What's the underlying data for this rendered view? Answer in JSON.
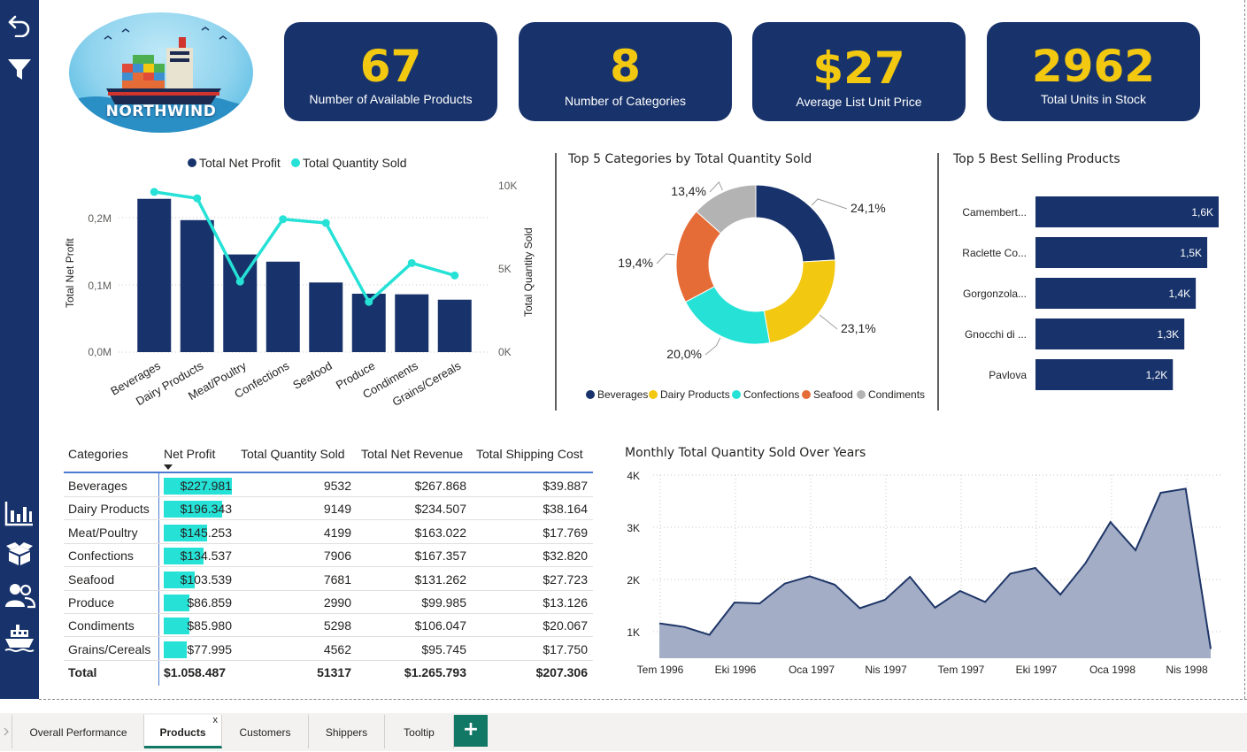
{
  "logo": {
    "text": "NORTHWIND"
  },
  "kpis": [
    {
      "value": "67",
      "label": "Number of Available Products"
    },
    {
      "value": "8",
      "label": "Number of Categories"
    },
    {
      "value": "$27",
      "label": "Average List Unit Price"
    },
    {
      "value": "2962",
      "label": "Total Units in Stock"
    }
  ],
  "combo": {
    "legend": [
      "Total Net Profit",
      "Total Quantity Sold"
    ],
    "ylabel_left": "Total Net Profit",
    "ylabel_right": "Total Quantity Sold",
    "left_ticks": [
      "0,0M",
      "0,1M",
      "0,2M"
    ],
    "right_ticks": [
      "0K",
      "5K",
      "10K"
    ]
  },
  "donut": {
    "title": "Top 5 Categories by Total Quantity Sold",
    "legend": [
      "Beverages",
      "Dairy Products",
      "Confections",
      "Seafood",
      "Condiments"
    ]
  },
  "bars": {
    "title": "Top 5 Best Selling Products"
  },
  "table": {
    "headers": [
      "Categories",
      "Net Profit",
      "Total Quantity Sold",
      "Total Net Revenue",
      "Total Shipping Cost"
    ],
    "rows": [
      [
        "Beverages",
        "$227.981",
        "9532",
        "$267.868",
        "$39.887"
      ],
      [
        "Dairy Products",
        "$196.343",
        "9149",
        "$234.507",
        "$38.164"
      ],
      [
        "Meat/Poultry",
        "$145.253",
        "4199",
        "$163.022",
        "$17.769"
      ],
      [
        "Confections",
        "$134.537",
        "7906",
        "$167.357",
        "$32.820"
      ],
      [
        "Seafood",
        "$103.539",
        "7681",
        "$131.262",
        "$27.723"
      ],
      [
        "Produce",
        "$86.859",
        "2990",
        "$99.985",
        "$13.126"
      ],
      [
        "Condiments",
        "$85.980",
        "5298",
        "$106.047",
        "$20.067"
      ],
      [
        "Grains/Cereals",
        "$77.995",
        "4562",
        "$95.745",
        "$17.750"
      ]
    ],
    "bar_fraction": [
      1.0,
      0.861,
      0.637,
      0.59,
      0.454,
      0.381,
      0.377,
      0.342
    ],
    "total": [
      "Total",
      "$1.058.487",
      "51317",
      "$1.265.793",
      "$207.306"
    ]
  },
  "area": {
    "title": "Monthly Total Quantity Sold Over Years",
    "y_ticks": [
      "1K",
      "2K",
      "3K",
      "4K"
    ],
    "x_ticks": [
      "Tem 1996",
      "Eki 1996",
      "Oca 1997",
      "Nis 1997",
      "Tem 1997",
      "Eki 1997",
      "Oca 1998",
      "Nis 1998"
    ]
  },
  "tabs": [
    "Overall Performance",
    "Products",
    "Customers",
    "Shippers",
    "Tooltip"
  ],
  "tab_close": "x",
  "tab_add": "+",
  "colors": {
    "navy": "#18336b",
    "teal": "#25e1d6",
    "yellow": "#f2c811",
    "orange": "#e66c37",
    "gray": "#b3b3b3",
    "area_fill": "#a3adc6",
    "area_line": "#1f3668",
    "kpi_value": "#f2c811"
  },
  "chart_data": [
    {
      "type": "bar+line",
      "title": "",
      "categories": [
        "Beverages",
        "Dairy Products",
        "Meat/Poultry",
        "Confections",
        "Seafood",
        "Produce",
        "Condiments",
        "Grains/Cereals"
      ],
      "series": [
        {
          "name": "Total Net Profit",
          "type": "bar",
          "axis": "left",
          "values": [
            227981,
            196343,
            145253,
            134537,
            103539,
            86859,
            85980,
            77995
          ]
        },
        {
          "name": "Total Quantity Sold",
          "type": "line",
          "axis": "right",
          "values": [
            9532,
            9149,
            4199,
            7906,
            7681,
            2990,
            5298,
            4562
          ]
        }
      ],
      "ylabel": "Total Net Profit",
      "ylabel_right": "Total Quantity Sold",
      "ylim": [
        0,
        250000
      ],
      "ylim_right": [
        0,
        10000
      ],
      "legend": "top"
    },
    {
      "type": "pie",
      "title": "Top 5 Categories by Total Quantity Sold",
      "categories": [
        "Beverages",
        "Dairy Products",
        "Confections",
        "Seafood",
        "Condiments"
      ],
      "values": [
        24.1,
        23.1,
        20.0,
        19.4,
        13.4
      ],
      "labels": [
        "24,1%",
        "23,1%",
        "20,0%",
        "19,4%",
        "13,4%"
      ],
      "legend": "bottom"
    },
    {
      "type": "bar",
      "orientation": "horizontal",
      "title": "Top 5 Best Selling Products",
      "categories": [
        "Camembert...",
        "Raclette Co...",
        "Gorgonzola...",
        "Gnocchi di ...",
        "Pavlova"
      ],
      "values": [
        1600,
        1500,
        1400,
        1300,
        1200
      ],
      "labels": [
        "1,6K",
        "1,5K",
        "1,4K",
        "1,3K",
        "1,2K"
      ]
    },
    {
      "type": "area",
      "title": "Monthly Total Quantity Sold Over Years",
      "x": [
        "1996-07",
        "1996-08",
        "1996-09",
        "1996-10",
        "1996-11",
        "1996-12",
        "1997-01",
        "1997-02",
        "1997-03",
        "1997-04",
        "1997-05",
        "1997-06",
        "1997-07",
        "1997-08",
        "1997-09",
        "1997-10",
        "1997-11",
        "1997-12",
        "1998-01",
        "1998-02",
        "1998-03",
        "1998-04",
        "1998-05"
      ],
      "values": [
        1160,
        1090,
        940,
        1560,
        1540,
        1920,
        2060,
        1900,
        1450,
        1610,
        2050,
        1460,
        1780,
        1570,
        2110,
        2220,
        1710,
        2310,
        3100,
        2560,
        3660,
        3740,
        670
      ],
      "ylim": [
        600,
        4000
      ],
      "grid": true
    }
  ]
}
